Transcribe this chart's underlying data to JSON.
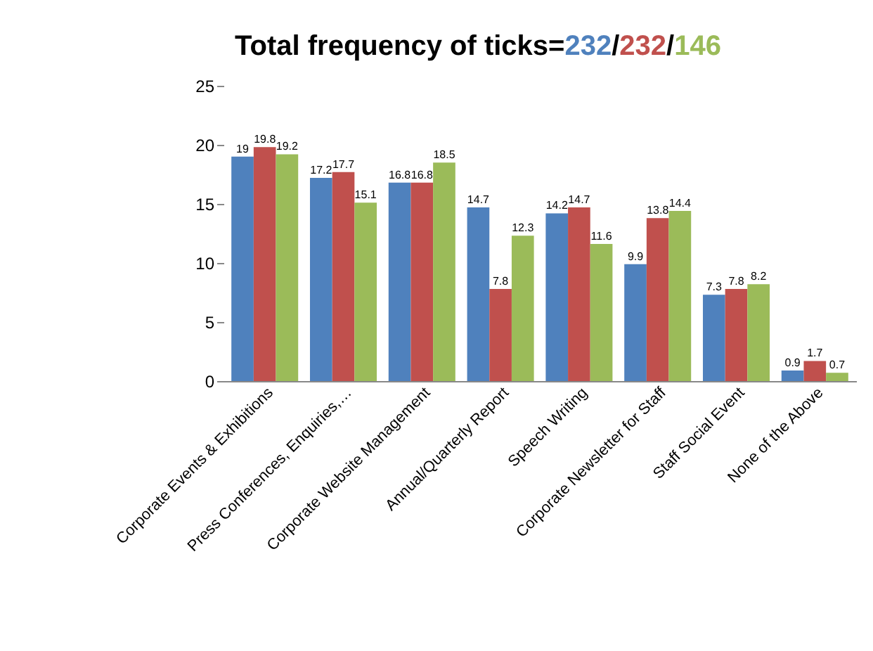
{
  "chart_data": {
    "type": "bar",
    "title": "Total frequency of ticks=232/232/146",
    "categories": [
      "Corporate Events & Exhibitions",
      "Press Conferences, Enquiries,…",
      "Corporate Website Management",
      "Annual/Quarterly  Report",
      "Speech Writing",
      "Corporate Newsletter for Staff",
      "Staff Social Event",
      "None of the Above"
    ],
    "series": [
      {
        "color": "#4f81bd",
        "values": [
          19,
          17.2,
          16.8,
          14.7,
          14.2,
          9.9,
          7.3,
          0.9
        ]
      },
      {
        "color": "#c0504d",
        "values": [
          19.8,
          17.7,
          16.8,
          7.8,
          14.7,
          13.8,
          7.8,
          1.7
        ]
      },
      {
        "color": "#9bbb59",
        "values": [
          19.2,
          15.1,
          18.5,
          12.3,
          11.6,
          14.4,
          8.2,
          0.7
        ]
      }
    ],
    "ylim": [
      0,
      25
    ],
    "yticks": [
      0,
      5,
      10,
      15,
      20,
      25
    ],
    "grid": false,
    "legend": false,
    "data_labels": true
  }
}
